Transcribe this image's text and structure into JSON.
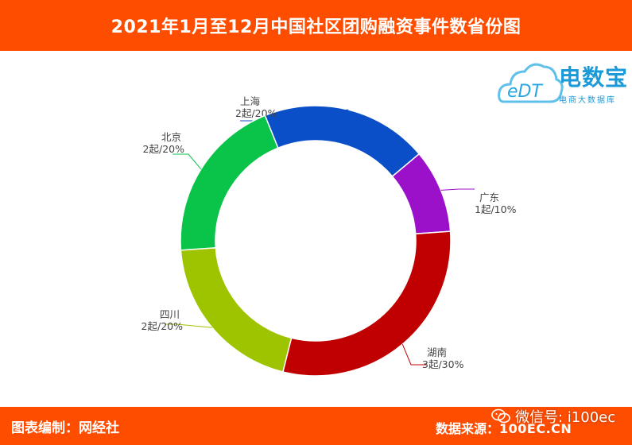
{
  "header": {
    "title": "2021年1月至12月中国社区团购融资事件数省份图"
  },
  "logo": {
    "brand": "电数宝",
    "mark": "eDT",
    "subtitle": "电商大数据库"
  },
  "footer": {
    "editor": "图表编制：网经社",
    "source_label": "数据来源：",
    "source_value": "100EC.CN",
    "wechat": "微信号: i100ec"
  },
  "colors": {
    "header_bg": "#ff4d00",
    "上海": "#0a4fc7",
    "广东": "#9b10c9",
    "湖南": "#c00000",
    "四川": "#9ec400",
    "北京": "#0ac44a"
  },
  "chart_data": {
    "type": "pie",
    "variant": "donut",
    "categories": [
      "上海",
      "广东",
      "湖南",
      "四川",
      "北京"
    ],
    "values": [
      2,
      1,
      3,
      2,
      2
    ],
    "percents": [
      "20%",
      "10%",
      "30%",
      "20%",
      "20%"
    ],
    "labels": [
      {
        "name": "上海",
        "value": "2起/20%"
      },
      {
        "name": "广东",
        "value": "1起/10%"
      },
      {
        "name": "湖南",
        "value": "3起/30%"
      },
      {
        "name": "四川",
        "value": "2起/20%"
      },
      {
        "name": "北京",
        "value": "2起/20%"
      }
    ]
  }
}
